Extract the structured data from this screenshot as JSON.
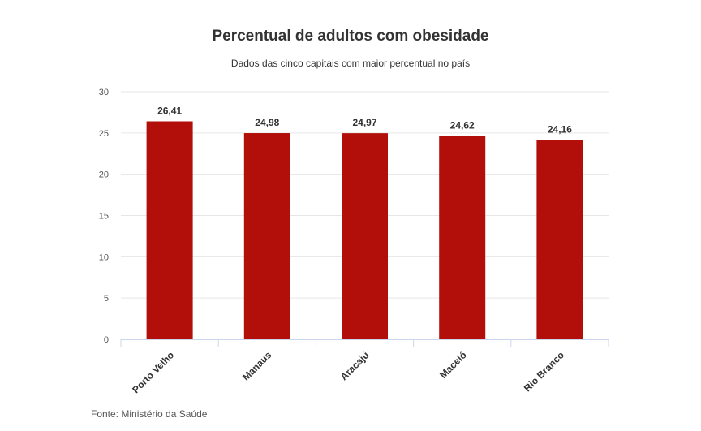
{
  "chart_data": {
    "type": "bar",
    "title": "Percentual de adultos com obesidade",
    "subtitle": "Dados das cinco capitais com maior percentual no país",
    "categories": [
      "Porto Velho",
      "Manaus",
      "Aracajú",
      "Maceió",
      "Rio Branco"
    ],
    "values": [
      26.41,
      24.98,
      24.97,
      24.62,
      24.16
    ],
    "data_labels": [
      "26,41",
      "24,98",
      "24,97",
      "24,62",
      "24,16"
    ],
    "xlabel": "",
    "ylabel": "",
    "ylim": [
      0,
      30
    ],
    "yticks": [
      0,
      5,
      10,
      15,
      20,
      25,
      30
    ],
    "grid": true,
    "legend": "none",
    "bar_color": "#b20e0a",
    "source": "Fonte: Ministério da Saúde"
  }
}
